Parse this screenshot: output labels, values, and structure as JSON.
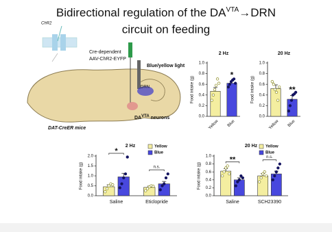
{
  "slide": {
    "title_parts": [
      "Bidirectional regulation of the DA",
      "VTA",
      "→DRN",
      "circuit on feeding"
    ]
  },
  "diagram": {
    "channel_label": "ChR2",
    "virus_line1": "Cre-dependent",
    "virus_line2": "AAV-ChR2-EYFP",
    "light_label": "Blue/yellow light",
    "region_label": "DRN",
    "neuron_main": "DA",
    "neuron_sup": "VTA",
    "neuron_suffix": " neurons",
    "mouse_label": "DAT-CreER mice"
  },
  "chart_data": [
    {
      "type": "bar",
      "title": "2 Hz",
      "y_label": "Food intake (g)",
      "categories": [
        "Yellow",
        "Blue"
      ],
      "values": [
        0.47,
        0.62
      ],
      "errors": [
        0.07,
        0.04
      ],
      "colors": [
        "#f4eea0",
        "#4848de"
      ],
      "points": [
        [
          0.3,
          0.4,
          0.5,
          0.58,
          0.7,
          0.62
        ],
        [
          0.55,
          0.6,
          0.65,
          0.68,
          0.7,
          0.62
        ]
      ],
      "annotation": "*",
      "ylim": [
        0,
        1
      ],
      "yticks": [
        {
          "value": 0,
          "label": "0.0"
        },
        0.2,
        0.4,
        0.6,
        0.8,
        {
          "value": 1,
          "label": "1.0"
        }
      ]
    },
    {
      "type": "bar",
      "title": "20 Hz",
      "y_label": "Food intake (g)",
      "categories": [
        "Yellow",
        "Blue"
      ],
      "values": [
        0.52,
        0.32
      ],
      "errors": [
        0.07,
        0.07
      ],
      "colors": [
        "#f4eea0",
        "#4848de"
      ],
      "points": [
        [
          0.65,
          0.6,
          0.5,
          0.45,
          0.3,
          0.55
        ],
        [
          0.1,
          0.2,
          0.3,
          0.4,
          0.42,
          0.45
        ]
      ],
      "annotation": "**",
      "ylim": [
        0,
        1
      ],
      "yticks": [
        {
          "value": 0,
          "label": "0.0"
        },
        0.2,
        0.4,
        0.6,
        0.8,
        {
          "value": 1,
          "label": "1.0"
        }
      ]
    },
    {
      "type": "grouped_bar",
      "title": "2 Hz",
      "y_label": "Food intake (g)",
      "categories": [
        "Saline",
        "Eticlopride"
      ],
      "series": [
        {
          "name": "Yellow",
          "color": "#f4eea0",
          "values": [
            0.45,
            0.42
          ],
          "errors": [
            0.1,
            0.06
          ],
          "points": [
            [
              0.2,
              0.35,
              0.5,
              0.6,
              0.55
            ],
            [
              0.25,
              0.35,
              0.45,
              0.5,
              0.48
            ]
          ]
        },
        {
          "name": "Blue",
          "color": "#4848de",
          "values": [
            0.95,
            0.6
          ],
          "errors": [
            0.18,
            0.12
          ],
          "points": [
            [
              0.4,
              0.6,
              0.9,
              1.1,
              1.95
            ],
            [
              0.3,
              0.5,
              0.6,
              0.9,
              1.1
            ]
          ]
        }
      ],
      "annotations": [
        "*",
        "n.s."
      ],
      "legend": "top-right",
      "ylim": [
        0,
        2
      ],
      "yticks": [
        {
          "value": 0,
          "label": "0.0"
        },
        0.5,
        {
          "value": 1,
          "label": "1.0"
        },
        1.5,
        {
          "value": 2,
          "label": "2.0"
        }
      ]
    },
    {
      "type": "grouped_bar",
      "title": "20 Hz",
      "y_label": "Food intake (g)",
      "categories": [
        "Saline",
        "SCH23390"
      ],
      "series": [
        {
          "name": "Yellow",
          "color": "#f4eea0",
          "values": [
            0.62,
            0.5
          ],
          "errors": [
            0.06,
            0.06
          ],
          "points": [
            [
              0.5,
              0.6,
              0.7,
              0.75,
              0.55
            ],
            [
              0.35,
              0.45,
              0.55,
              0.6,
              0.5
            ]
          ]
        },
        {
          "name": "Blue",
          "color": "#4848de",
          "values": [
            0.4,
            0.55
          ],
          "errors": [
            0.05,
            0.07
          ],
          "points": [
            [
              0.25,
              0.35,
              0.4,
              0.5,
              0.45
            ],
            [
              0.4,
              0.5,
              0.6,
              0.7,
              0.8
            ]
          ]
        }
      ],
      "annotations": [
        "**",
        "n.s."
      ],
      "legend": "top-right",
      "ylim": [
        0,
        1
      ],
      "yticks": [
        {
          "value": 0,
          "label": "0.0"
        },
        0.2,
        0.4,
        0.6,
        0.8,
        {
          "value": 1,
          "label": "1.0"
        }
      ]
    }
  ]
}
